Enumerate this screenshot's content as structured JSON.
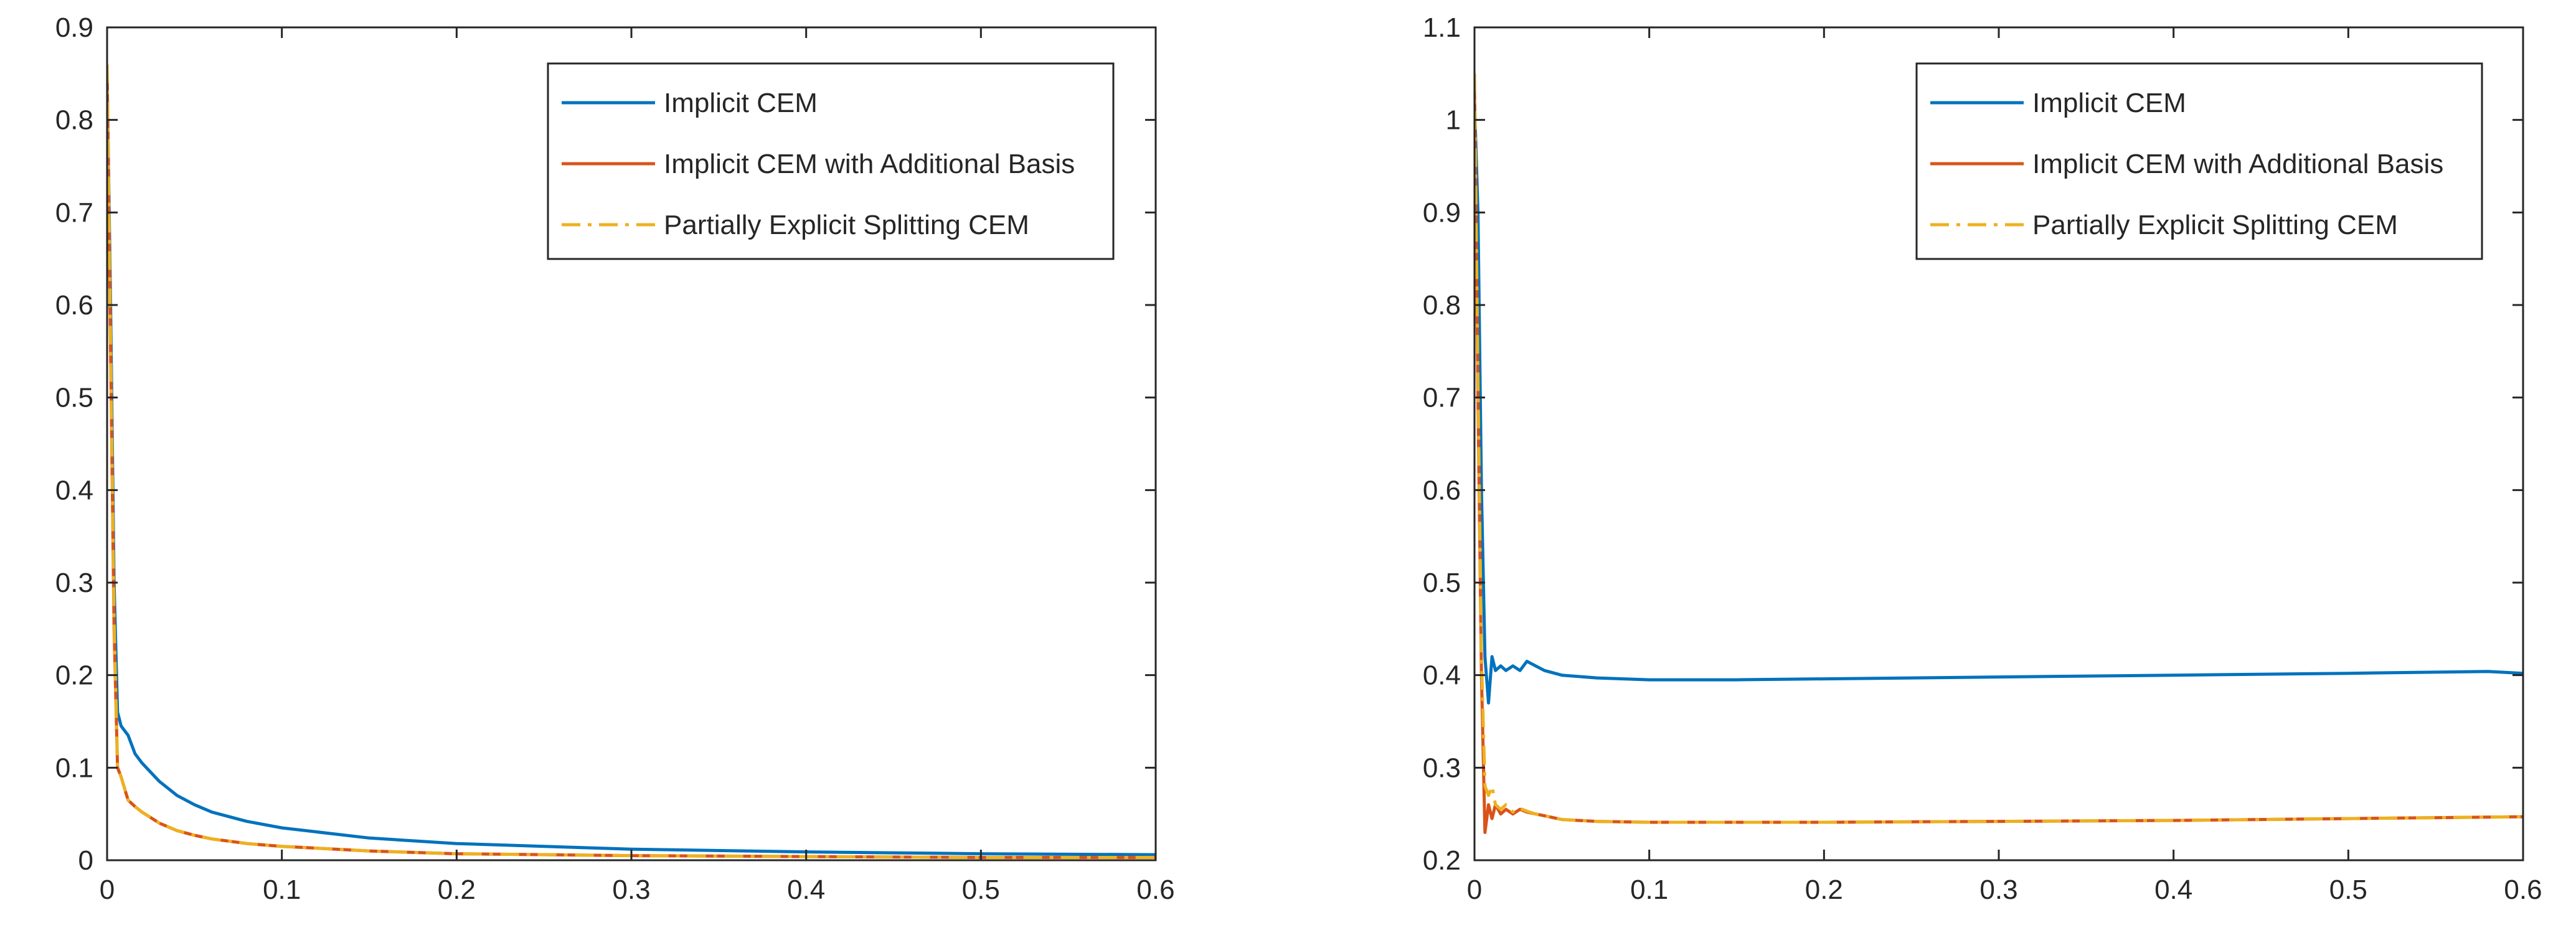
{
  "chart_data": [
    {
      "type": "line",
      "title": "",
      "xlabel": "",
      "ylabel": "",
      "xlim": [
        0,
        0.6
      ],
      "ylim": [
        0,
        0.9
      ],
      "xticks": [
        "0",
        "0.1",
        "0.2",
        "0.3",
        "0.4",
        "0.5",
        "0.6"
      ],
      "yticks": [
        "0",
        "0.1",
        "0.2",
        "0.3",
        "0.4",
        "0.5",
        "0.6",
        "0.7",
        "0.8",
        "0.9"
      ],
      "grid": false,
      "legend": "top-right",
      "series": [
        {
          "name": "Implicit CEM",
          "color": "#0072BD",
          "style": "solid",
          "x": [
            0,
            0.002,
            0.004,
            0.006,
            0.008,
            0.012,
            0.016,
            0.02,
            0.03,
            0.04,
            0.05,
            0.06,
            0.08,
            0.1,
            0.15,
            0.2,
            0.3,
            0.4,
            0.5,
            0.6
          ],
          "y": [
            0.85,
            0.6,
            0.3,
            0.16,
            0.145,
            0.135,
            0.115,
            0.105,
            0.085,
            0.07,
            0.06,
            0.052,
            0.042,
            0.035,
            0.024,
            0.018,
            0.012,
            0.009,
            0.007,
            0.006
          ]
        },
        {
          "name": "Implicit CEM with Additional Basis",
          "color": "#D95319",
          "style": "solid",
          "x": [
            0,
            0.002,
            0.004,
            0.006,
            0.008,
            0.012,
            0.016,
            0.02,
            0.03,
            0.04,
            0.05,
            0.06,
            0.08,
            0.1,
            0.15,
            0.2,
            0.3,
            0.4,
            0.5,
            0.6
          ],
          "y": [
            0.85,
            0.55,
            0.25,
            0.1,
            0.09,
            0.065,
            0.058,
            0.052,
            0.04,
            0.032,
            0.027,
            0.023,
            0.018,
            0.015,
            0.01,
            0.007,
            0.005,
            0.004,
            0.003,
            0.003
          ]
        },
        {
          "name": "Partially Explicit Splitting CEM",
          "color": "#EDB120",
          "style": "dashdot",
          "x": [
            0,
            0.002,
            0.004,
            0.006,
            0.008,
            0.012,
            0.016,
            0.02,
            0.03,
            0.04,
            0.05,
            0.06,
            0.08,
            0.1,
            0.15,
            0.2,
            0.3,
            0.4,
            0.5,
            0.6
          ],
          "y": [
            0.86,
            0.56,
            0.26,
            0.1,
            0.09,
            0.065,
            0.058,
            0.052,
            0.04,
            0.032,
            0.027,
            0.023,
            0.018,
            0.015,
            0.01,
            0.007,
            0.005,
            0.004,
            0.003,
            0.003
          ]
        }
      ]
    },
    {
      "type": "line",
      "title": "",
      "xlabel": "",
      "ylabel": "",
      "xlim": [
        0,
        0.6
      ],
      "ylim": [
        0.2,
        1.1
      ],
      "xticks": [
        "0",
        "0.1",
        "0.2",
        "0.3",
        "0.4",
        "0.5",
        "0.6"
      ],
      "yticks": [
        "0.2",
        "0.3",
        "0.4",
        "0.5",
        "0.6",
        "0.7",
        "0.8",
        "0.9",
        "1",
        "1.1"
      ],
      "grid": false,
      "legend": "top-right",
      "series": [
        {
          "name": "Implicit CEM",
          "color": "#0072BD",
          "style": "solid",
          "x": [
            0,
            0.002,
            0.004,
            0.006,
            0.008,
            0.01,
            0.012,
            0.015,
            0.018,
            0.022,
            0.026,
            0.03,
            0.035,
            0.04,
            0.05,
            0.07,
            0.1,
            0.15,
            0.2,
            0.3,
            0.4,
            0.5,
            0.58,
            0.6
          ],
          "y": [
            1.02,
            0.9,
            0.6,
            0.42,
            0.37,
            0.42,
            0.405,
            0.41,
            0.405,
            0.41,
            0.405,
            0.415,
            0.41,
            0.405,
            0.4,
            0.397,
            0.395,
            0.395,
            0.396,
            0.398,
            0.4,
            0.402,
            0.404,
            0.402
          ]
        },
        {
          "name": "Implicit CEM with Additional Basis",
          "color": "#D95319",
          "style": "solid",
          "x": [
            0,
            0.002,
            0.004,
            0.006,
            0.008,
            0.01,
            0.012,
            0.015,
            0.018,
            0.022,
            0.026,
            0.03,
            0.035,
            0.04,
            0.05,
            0.07,
            0.1,
            0.15,
            0.2,
            0.3,
            0.4,
            0.5,
            0.6
          ],
          "y": [
            1.03,
            0.7,
            0.4,
            0.23,
            0.26,
            0.245,
            0.26,
            0.25,
            0.255,
            0.25,
            0.255,
            0.252,
            0.25,
            0.248,
            0.244,
            0.242,
            0.241,
            0.241,
            0.241,
            0.242,
            0.243,
            0.245,
            0.247
          ]
        },
        {
          "name": "Partially Explicit Splitting CEM",
          "color": "#EDB120",
          "style": "dashdot",
          "x": [
            0,
            0.002,
            0.004,
            0.006,
            0.008,
            0.01,
            0.012,
            0.015,
            0.018,
            0.022,
            0.026,
            0.03,
            0.035,
            0.04,
            0.05,
            0.07,
            0.1,
            0.15,
            0.2,
            0.3,
            0.4,
            0.5,
            0.6
          ],
          "y": [
            1.05,
            0.72,
            0.42,
            0.28,
            0.27,
            0.28,
            0.26,
            0.255,
            0.26,
            0.252,
            0.256,
            0.253,
            0.25,
            0.248,
            0.244,
            0.242,
            0.241,
            0.241,
            0.241,
            0.242,
            0.243,
            0.245,
            0.247
          ]
        }
      ]
    }
  ]
}
